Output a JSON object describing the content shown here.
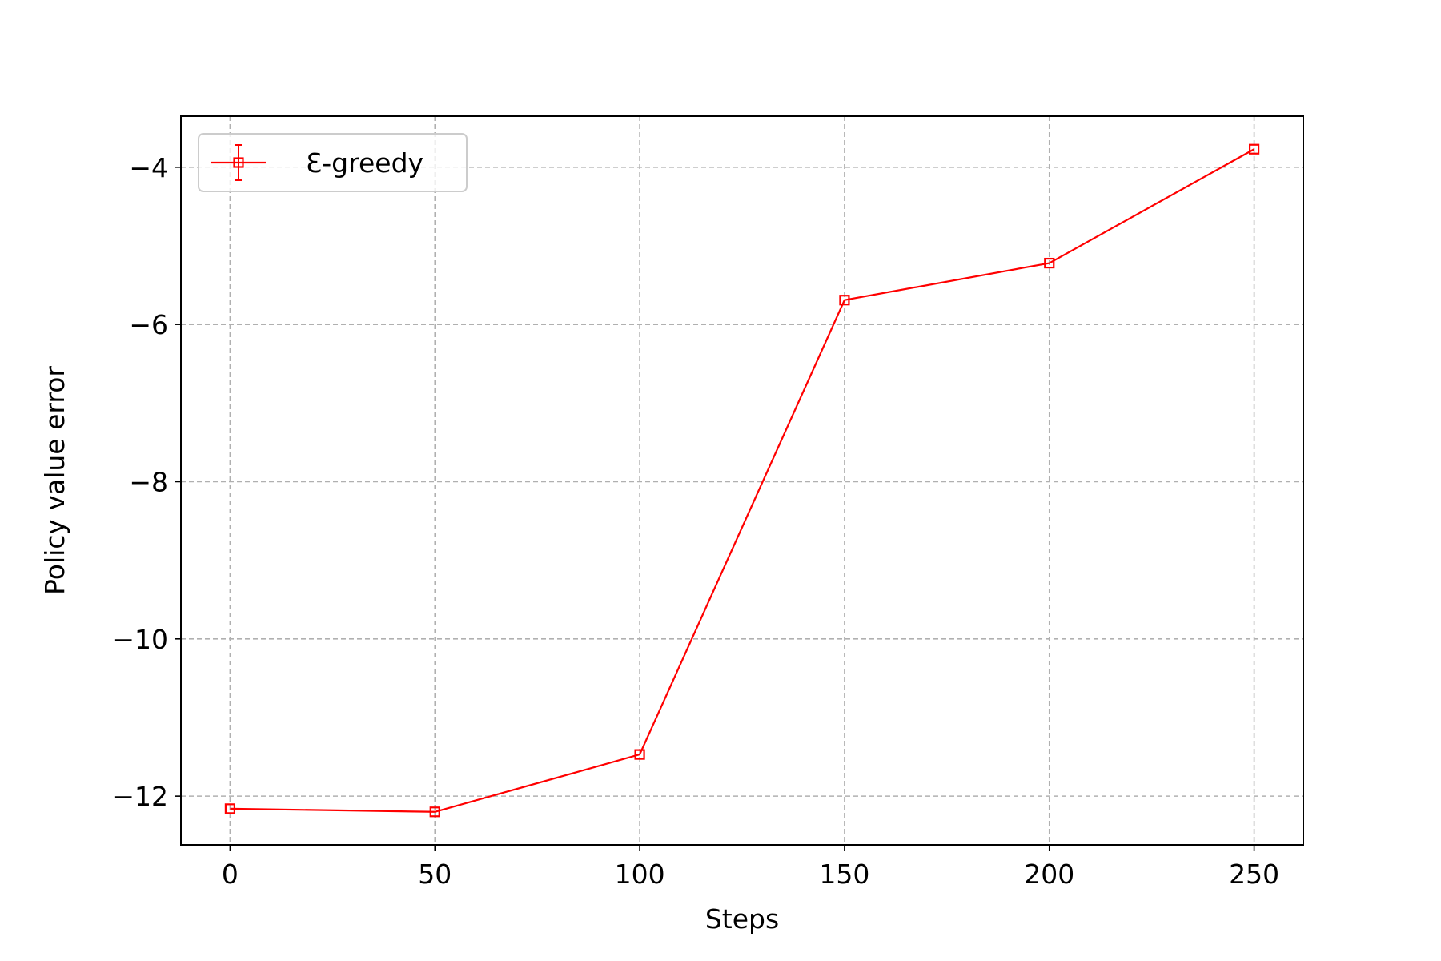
{
  "chart_data": {
    "type": "line",
    "title": "",
    "xlabel": "Steps",
    "ylabel": "Policy value error",
    "x": [
      0,
      50,
      100,
      150,
      200,
      250
    ],
    "series": [
      {
        "name": "Ɛ-greedy",
        "color": "#ff0000",
        "marker": "square",
        "values": [
          -12.16,
          -12.2,
          -11.47,
          -5.69,
          -5.22,
          -3.77
        ]
      }
    ],
    "xlim": [
      -12,
      262
    ],
    "ylim": [
      -12.62,
      -3.35
    ],
    "xticks": [
      0,
      50,
      100,
      150,
      200,
      250
    ],
    "yticks": [
      -12,
      -10,
      -8,
      -6,
      -4
    ],
    "xtick_labels": [
      "0",
      "50",
      "100",
      "150",
      "200",
      "250"
    ],
    "ytick_labels": [
      "−12",
      "−10",
      "−8",
      "−6",
      "−4"
    ],
    "grid": true,
    "legend": "upper-left"
  }
}
